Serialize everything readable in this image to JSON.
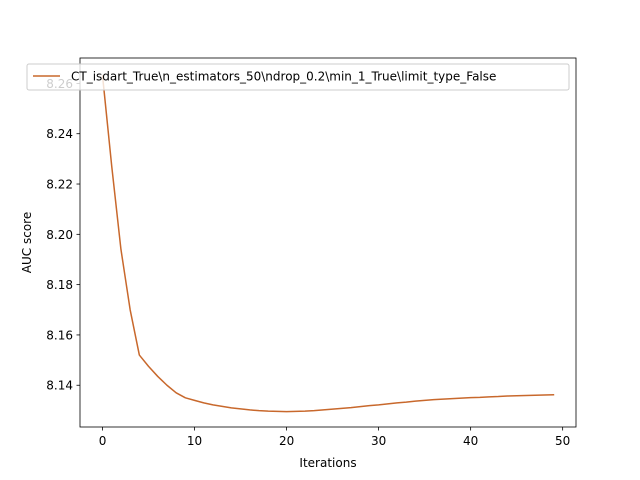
{
  "chart_data": {
    "type": "line",
    "title": "",
    "xlabel": "Iterations",
    "ylabel": "AUC score",
    "xlim": [
      -2.45,
      51.45
    ],
    "ylim": [
      8.1234,
      8.2701
    ],
    "xticks": [
      0,
      10,
      20,
      30,
      40,
      50
    ],
    "yticks": [
      8.14,
      8.16,
      8.18,
      8.2,
      8.22,
      8.24,
      8.26
    ],
    "ytick_decimals": 2,
    "grid": false,
    "legend_position": "top",
    "series": [
      {
        "name": "CT_isdart_True\\n_estimators_50\\ndrop_0.2\\min_1_True\\limit_type_False",
        "color": "#c8682c",
        "x": [
          0,
          1,
          2,
          3,
          4,
          5,
          6,
          7,
          8,
          9,
          10,
          11,
          12,
          13,
          14,
          15,
          16,
          17,
          18,
          19,
          20,
          21,
          22,
          23,
          24,
          25,
          26,
          27,
          28,
          29,
          30,
          31,
          32,
          33,
          34,
          35,
          36,
          37,
          38,
          39,
          40,
          41,
          42,
          43,
          44,
          45,
          46,
          47,
          48,
          49
        ],
        "y": [
          8.263,
          8.227,
          8.194,
          8.17,
          8.152,
          8.1475,
          8.1435,
          8.14,
          8.137,
          8.135,
          8.134,
          8.133,
          8.1322,
          8.1316,
          8.131,
          8.1306,
          8.1302,
          8.1299,
          8.1297,
          8.1296,
          8.1295,
          8.1296,
          8.1297,
          8.1299,
          8.1302,
          8.1305,
          8.1308,
          8.1311,
          8.1315,
          8.1319,
          8.1322,
          8.1326,
          8.133,
          8.1333,
          8.1337,
          8.134,
          8.1343,
          8.1345,
          8.1347,
          8.1349,
          8.1351,
          8.1352,
          8.1354,
          8.1355,
          8.1357,
          8.1358,
          8.1359,
          8.136,
          8.1361,
          8.1362
        ]
      }
    ]
  }
}
